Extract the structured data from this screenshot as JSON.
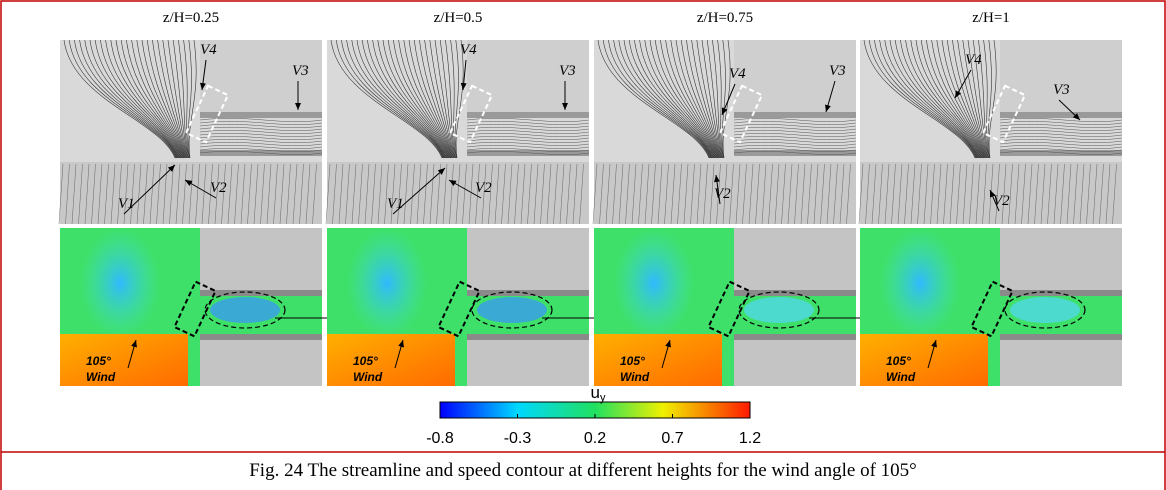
{
  "panels": [
    {
      "title": "z/H=0.25",
      "streamline_labels": [
        "V4",
        "V3",
        "V2",
        "V1"
      ],
      "contour_labels": [
        "105°",
        "Wind"
      ]
    },
    {
      "title": "z/H=0.5",
      "streamline_labels": [
        "V4",
        "V3",
        "V2",
        "V1"
      ],
      "contour_labels": [
        "105°",
        "Wind"
      ]
    },
    {
      "title": "z/H=0.75",
      "streamline_labels": [
        "V4",
        "V3",
        "V2"
      ],
      "contour_labels": [
        "105°",
        "Wind"
      ]
    },
    {
      "title": "z/H=1",
      "streamline_labels": [
        "V4",
        "V3",
        "V2"
      ],
      "contour_labels": [
        "105°",
        "Wind"
      ]
    }
  ],
  "colorbar": {
    "label": "u",
    "label_sub": "y",
    "range": [
      -0.8,
      1.2
    ],
    "ticks": [
      -0.8,
      -0.3,
      0.2,
      0.7,
      1.2
    ]
  },
  "caption": "Fig. 24 The streamline and speed contour at different heights for the wind angle of 105°"
}
